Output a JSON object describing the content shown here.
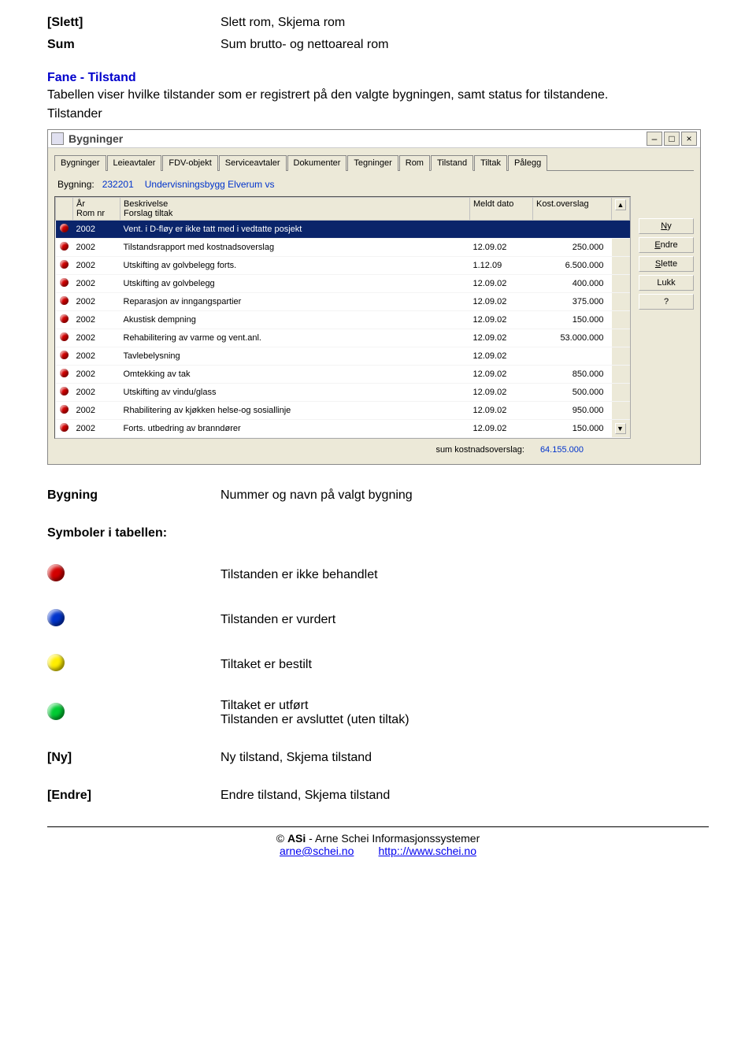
{
  "defs": {
    "slett": {
      "term": "[Slett]",
      "def": "Slett rom, Skjema rom"
    },
    "sum": {
      "term": "Sum",
      "def": "Sum brutto- og nettoareal rom"
    }
  },
  "fane": {
    "heading": "Fane - Tilstand",
    "text1": "Tabellen viser hvilke tilstander som er registrert på den valgte bygningen, samt status for tilstandene.",
    "text2": "Tilstander"
  },
  "win": {
    "title": "Bygninger",
    "tabs": [
      "Bygninger",
      "Leieavtaler",
      "FDV-objekt",
      "Serviceavtaler",
      "Dokumenter",
      "Tegninger",
      "Rom",
      "Tilstand",
      "Tiltak",
      "Pålegg"
    ],
    "active_tab": 7,
    "info": {
      "label": "Bygning:",
      "num": "232201",
      "name": "Undervisningsbygg Elverum vs"
    },
    "cols": {
      "year_a": "År",
      "year_b": "Rom nr",
      "desc_a": "Beskrivelse",
      "desc_b": "Forslag tiltak",
      "date": "Meldt dato",
      "cost": "Kost.overslag"
    },
    "rows": [
      {
        "dot": "red",
        "year": "2002",
        "desc": "Vent. i D-fløy er ikke tatt med i vedtatte posjekt",
        "date": "",
        "cost": "",
        "selected": true
      },
      {
        "dot": "red",
        "year": "2002",
        "desc": "Tilstandsrapport med kostnadsoverslag",
        "date": "12.09.02",
        "cost": "250.000"
      },
      {
        "dot": "red",
        "year": "2002",
        "desc": "Utskifting av golvbelegg forts.",
        "date": "1.12.09",
        "cost": "6.500.000"
      },
      {
        "dot": "red",
        "year": "2002",
        "desc": "Utskifting av golvbelegg",
        "date": "12.09.02",
        "cost": "400.000"
      },
      {
        "dot": "red",
        "year": "2002",
        "desc": "Reparasjon av inngangspartier",
        "date": "12.09.02",
        "cost": "375.000"
      },
      {
        "dot": "red",
        "year": "2002",
        "desc": "Akustisk dempning",
        "date": "12.09.02",
        "cost": "150.000"
      },
      {
        "dot": "red",
        "year": "2002",
        "desc": "Rehabilitering av varme og vent.anl.",
        "date": "12.09.02",
        "cost": "53.000.000"
      },
      {
        "dot": "red",
        "year": "2002",
        "desc": "Tavlebelysning",
        "date": "12.09.02",
        "cost": ""
      },
      {
        "dot": "red",
        "year": "2002",
        "desc": "Omtekking av tak",
        "date": "12.09.02",
        "cost": "850.000"
      },
      {
        "dot": "red",
        "year": "2002",
        "desc": "Utskifting av vindu/glass",
        "date": "12.09.02",
        "cost": "500.000"
      },
      {
        "dot": "red",
        "year": "2002",
        "desc": "Rhabilitering av kjøkken helse-og sosiallinje",
        "date": "12.09.02",
        "cost": "950.000"
      },
      {
        "dot": "red",
        "year": "2002",
        "desc": "Forts. utbedring av branndører",
        "date": "12.09.02",
        "cost": "150.000"
      }
    ],
    "side": {
      "ny": "Ny",
      "endre": "Endre",
      "slette": "Slette",
      "lukk": "Lukk",
      "help": "?"
    },
    "footer": {
      "label": "sum kostnadsoverslag:",
      "value": "64.155.000"
    }
  },
  "legend": {
    "bygning": {
      "term": "Bygning",
      "def": "Nummer og navn på valgt bygning"
    },
    "symbols_term": "Symboler i tabellen:",
    "red": "Tilstanden er ikke behandlet",
    "blue": "Tilstanden er vurdert",
    "yellow": "Tiltaket er bestilt",
    "green1": "Tiltaket er utført",
    "green2": "Tilstanden er avsluttet (uten tiltak)",
    "ny": {
      "term": "[Ny]",
      "def": "Ny tilstand, Skjema tilstand"
    },
    "endre": {
      "term": "[Endre]",
      "def": "Endre tilstand, Skjema tilstand"
    }
  },
  "credit": {
    "line1a": "© ",
    "line1b": "ASi",
    "line1c": " - Arne Schei Informasjonssystemer",
    "email": "arne@schei.no",
    "url": "http:://www.schei.no"
  }
}
